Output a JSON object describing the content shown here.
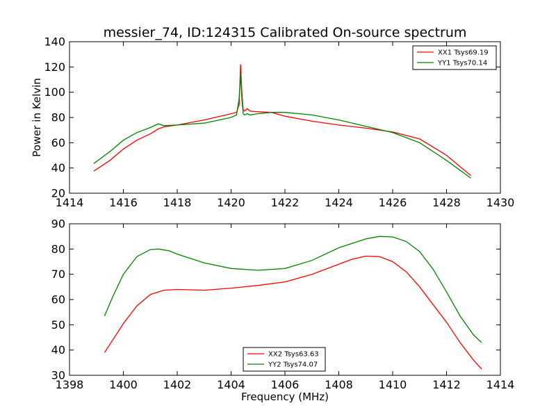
{
  "title": "messier_74, ID:124315 Calibrated On-source spectrum",
  "colors": {
    "xx": "#ff0000",
    "yy": "#008000"
  },
  "chart_data": [
    {
      "type": "line",
      "panel": "top",
      "xlabel": "",
      "ylabel": "Power in Kelvin",
      "xlim": [
        1414,
        1430
      ],
      "ylim": [
        20,
        140
      ],
      "xticks": [
        1414,
        1416,
        1418,
        1420,
        1422,
        1424,
        1426,
        1428,
        1430
      ],
      "yticks": [
        20,
        40,
        60,
        80,
        100,
        120,
        140
      ],
      "legend_position": "top-right",
      "series": [
        {
          "name": "XX1 Tsys69.19",
          "color": "#ff0000",
          "points": [
            [
              1414.9,
              37.5
            ],
            [
              1415.5,
              46
            ],
            [
              1416,
              55
            ],
            [
              1416.5,
              62
            ],
            [
              1417,
              67
            ],
            [
              1417.3,
              71
            ],
            [
              1417.5,
              72.5
            ],
            [
              1418,
              74
            ],
            [
              1419,
              78
            ],
            [
              1420,
              83
            ],
            [
              1420.2,
              84
            ],
            [
              1420.3,
              90
            ],
            [
              1420.35,
              122
            ],
            [
              1420.4,
              100
            ],
            [
              1420.45,
              86
            ],
            [
              1420.5,
              85
            ],
            [
              1420.6,
              87
            ],
            [
              1420.7,
              85
            ],
            [
              1421,
              84.5
            ],
            [
              1421.5,
              84
            ],
            [
              1422,
              81
            ],
            [
              1423,
              77
            ],
            [
              1424,
              74
            ],
            [
              1425,
              71.5
            ],
            [
              1426,
              68.5
            ],
            [
              1427,
              63
            ],
            [
              1428,
              50
            ],
            [
              1428.9,
              34
            ]
          ]
        },
        {
          "name": "YY1 Tsys70.14",
          "color": "#008000",
          "points": [
            [
              1414.9,
              43.5
            ],
            [
              1415.5,
              53
            ],
            [
              1416,
              62
            ],
            [
              1416.5,
              68
            ],
            [
              1417,
              72
            ],
            [
              1417.2,
              74
            ],
            [
              1417.3,
              75
            ],
            [
              1417.5,
              73.5
            ],
            [
              1418,
              74
            ],
            [
              1419,
              75.5
            ],
            [
              1420,
              80
            ],
            [
              1420.2,
              82
            ],
            [
              1420.3,
              95
            ],
            [
              1420.35,
              114
            ],
            [
              1420.4,
              95
            ],
            [
              1420.45,
              83
            ],
            [
              1420.5,
              82
            ],
            [
              1420.6,
              83
            ],
            [
              1420.7,
              82
            ],
            [
              1421,
              83
            ],
            [
              1421.5,
              84
            ],
            [
              1422,
              84
            ],
            [
              1423,
              82
            ],
            [
              1424,
              78
            ],
            [
              1425,
              73
            ],
            [
              1426,
              68
            ],
            [
              1427,
              60
            ],
            [
              1428,
              46
            ],
            [
              1428.9,
              32
            ]
          ]
        }
      ]
    },
    {
      "type": "line",
      "panel": "bottom",
      "xlabel": "Frequency (MHz)",
      "ylabel": "",
      "xlim": [
        1398,
        1414
      ],
      "ylim": [
        30,
        90
      ],
      "xticks": [
        1398,
        1400,
        1402,
        1404,
        1406,
        1408,
        1410,
        1412,
        1414
      ],
      "yticks": [
        30,
        40,
        50,
        60,
        70,
        80,
        90
      ],
      "legend_position": "bottom-center",
      "series": [
        {
          "name": "XX2 Tsys63.63",
          "color": "#ff0000",
          "points": [
            [
              1399.3,
              39
            ],
            [
              1400,
              50.5
            ],
            [
              1400.5,
              57.5
            ],
            [
              1401,
              62
            ],
            [
              1401.5,
              63.7
            ],
            [
              1402,
              64
            ],
            [
              1403,
              63.7
            ],
            [
              1404,
              64.5
            ],
            [
              1405,
              65.6
            ],
            [
              1406,
              67
            ],
            [
              1407,
              70
            ],
            [
              1408,
              74
            ],
            [
              1408.5,
              76
            ],
            [
              1409,
              77.2
            ],
            [
              1409.5,
              77
            ],
            [
              1410,
              75
            ],
            [
              1410.5,
              71
            ],
            [
              1411,
              65
            ],
            [
              1411.5,
              58
            ],
            [
              1412,
              51
            ],
            [
              1412.5,
              43
            ],
            [
              1413,
              36
            ],
            [
              1413.3,
              32.5
            ]
          ]
        },
        {
          "name": "YY2 Tsys74.07",
          "color": "#008000",
          "points": [
            [
              1399.3,
              53.5
            ],
            [
              1399.6,
              61
            ],
            [
              1400,
              70
            ],
            [
              1400.5,
              77
            ],
            [
              1401,
              79.8
            ],
            [
              1401.3,
              80
            ],
            [
              1401.7,
              79.3
            ],
            [
              1402,
              78
            ],
            [
              1403,
              74.5
            ],
            [
              1404,
              72.3
            ],
            [
              1405,
              71.6
            ],
            [
              1406,
              72.3
            ],
            [
              1407,
              75.5
            ],
            [
              1408,
              80.5
            ],
            [
              1409,
              84
            ],
            [
              1409.5,
              85
            ],
            [
              1410,
              84.8
            ],
            [
              1410.5,
              83
            ],
            [
              1411,
              79
            ],
            [
              1411.5,
              72
            ],
            [
              1412,
              63
            ],
            [
              1412.5,
              53.5
            ],
            [
              1413,
              46
            ],
            [
              1413.3,
              43
            ]
          ]
        }
      ]
    }
  ]
}
